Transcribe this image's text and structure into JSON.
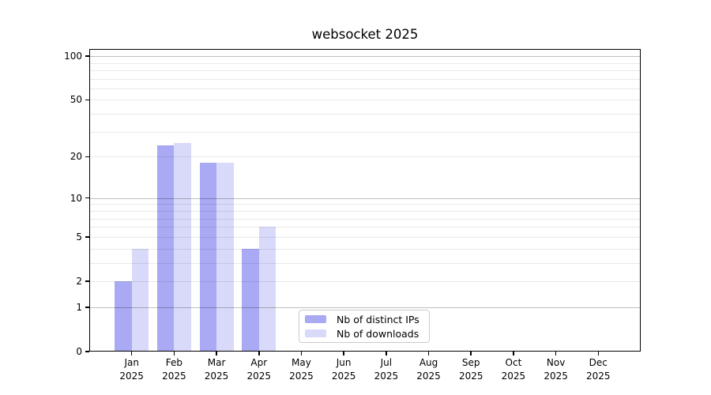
{
  "title": "websocket 2025",
  "year_label": "2025",
  "chart_data": {
    "type": "bar",
    "title": "websocket 2025",
    "categories": [
      "Jan 2025",
      "Feb 2025",
      "Mar 2025",
      "Apr 2025",
      "May 2025",
      "Jun 2025",
      "Jul 2025",
      "Aug 2025",
      "Sep 2025",
      "Oct 2025",
      "Nov 2025",
      "Dec 2025"
    ],
    "month_ticks": [
      "Jan",
      "Feb",
      "Mar",
      "Apr",
      "May",
      "Jun",
      "Jul",
      "Aug",
      "Sep",
      "Oct",
      "Nov",
      "Dec"
    ],
    "series": [
      {
        "name": "Nb of distinct IPs",
        "color": "#a9a9f4",
        "values": [
          2,
          24,
          18,
          4,
          0,
          0,
          0,
          0,
          0,
          0,
          0,
          0
        ]
      },
      {
        "name": "Nb of downloads",
        "color": "#d9d9f9",
        "values": [
          4,
          25,
          18,
          6,
          0,
          0,
          0,
          0,
          0,
          0,
          0,
          0
        ]
      }
    ],
    "xlabel": "",
    "ylabel": "",
    "yscale": "log1p",
    "ylim": [
      0,
      112
    ],
    "ytick_values": [
      0,
      1,
      2,
      5,
      10,
      20,
      50,
      100
    ],
    "grid": "on",
    "grid_minor_values": [
      2,
      3,
      4,
      5,
      6,
      7,
      8,
      9,
      20,
      30,
      40,
      50,
      60,
      70,
      80,
      90
    ],
    "grid_major_values": [
      1,
      10,
      100
    ],
    "legend_position": "inside lower-center"
  },
  "colors": {
    "background": "#ffffff",
    "spine": "#000000",
    "grid_minor": "rgba(0,0,0,0.085)",
    "grid_major": "rgba(0,0,0,0.25)",
    "legend_border": "#cccccc",
    "text": "#000000"
  }
}
